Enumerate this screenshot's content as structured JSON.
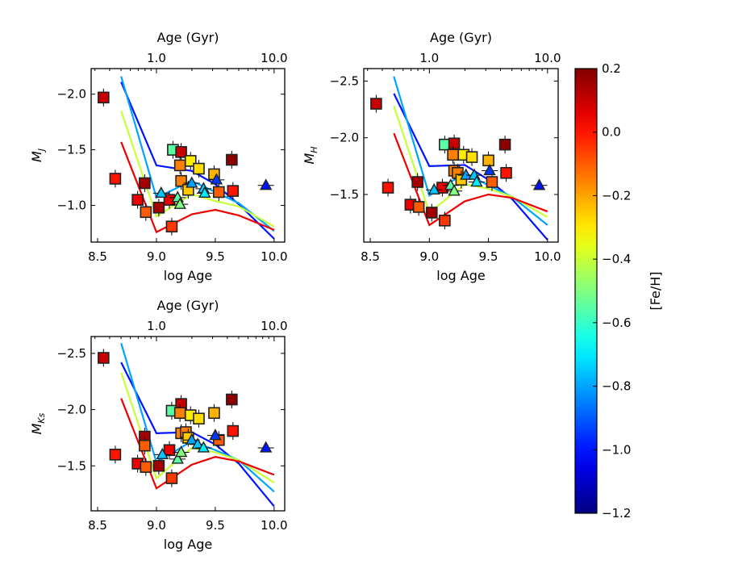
{
  "chart_data": [
    {
      "type": "scatter",
      "id": "MJ",
      "xlabel": "log Age",
      "ylabel_main": "M",
      "ylabel_sub": "J",
      "top_axis_label": "Age (Gyr)",
      "top_ticks": [
        {
          "label": "1.0",
          "logage": 9.0
        },
        {
          "label": "10.0",
          "logage": 10.0
        }
      ],
      "xlim": [
        8.445,
        10.09
      ],
      "ylim": [
        -2.23,
        -0.67
      ],
      "y_inverted": true,
      "xticks": [
        8.5,
        9.0,
        9.5,
        10.0
      ],
      "yticks": [
        -2.0,
        -1.5,
        -1.0
      ],
      "squares": [
        [
          8.55,
          -1.97,
          0.1
        ],
        [
          8.65,
          -1.24,
          0.0
        ],
        [
          8.9,
          -1.2,
          0.15
        ],
        [
          8.84,
          -1.05,
          0.05
        ],
        [
          8.91,
          -0.94,
          -0.1
        ],
        [
          9.02,
          -0.98,
          0.15
        ],
        [
          9.11,
          -1.05,
          0.05
        ],
        [
          9.13,
          -0.81,
          -0.05
        ],
        [
          9.14,
          -1.5,
          -0.55
        ],
        [
          9.21,
          -1.48,
          0.1
        ],
        [
          9.2,
          -1.36,
          -0.15
        ],
        [
          9.29,
          -1.4,
          -0.3
        ],
        [
          9.36,
          -1.33,
          -0.28
        ],
        [
          9.21,
          -1.22,
          -0.15
        ],
        [
          9.27,
          -1.14,
          -0.25
        ],
        [
          9.49,
          -1.28,
          -0.22
        ],
        [
          9.53,
          -1.12,
          -0.1
        ],
        [
          9.65,
          -1.13,
          0.0
        ],
        [
          9.64,
          -1.41,
          0.18
        ]
      ],
      "triangles": [
        [
          9.04,
          -1.11,
          -0.75
        ],
        [
          9.18,
          -1.07,
          -0.55
        ],
        [
          9.2,
          -1.01,
          -0.5
        ],
        [
          9.3,
          -1.2,
          -0.8
        ],
        [
          9.4,
          -1.15,
          -0.75
        ],
        [
          9.41,
          -1.11,
          -0.7
        ],
        [
          9.51,
          -1.23,
          -0.95
        ],
        [
          9.93,
          -1.18,
          -1.0
        ]
      ],
      "lines": [
        {
          "feh": -1.0,
          "x": [
            8.7,
            9.0,
            9.3,
            9.5,
            9.7,
            10.0
          ],
          "y": [
            -2.11,
            -1.36,
            -1.31,
            -1.19,
            -1.01,
            -0.7
          ]
        },
        {
          "feh": -0.8,
          "x": [
            8.7,
            9.0,
            9.3,
            9.5,
            9.7,
            10.0
          ],
          "y": [
            -2.16,
            -1.07,
            -1.22,
            -1.12,
            -1.02,
            -0.77
          ]
        },
        {
          "feh": -0.4,
          "x": [
            8.7,
            9.0,
            9.3,
            9.5,
            9.7,
            10.0
          ],
          "y": [
            -1.85,
            -0.9,
            -1.1,
            -1.04,
            -0.99,
            -0.81
          ]
        },
        {
          "feh": 0.05,
          "x": [
            8.7,
            9.0,
            9.3,
            9.5,
            9.7,
            10.0
          ],
          "y": [
            -1.57,
            -0.76,
            -0.92,
            -0.96,
            -0.91,
            -0.78
          ]
        }
      ]
    },
    {
      "type": "scatter",
      "id": "MH",
      "xlabel": "log Age",
      "ylabel_main": "M",
      "ylabel_sub": "H",
      "top_axis_label": "Age (Gyr)",
      "top_ticks": [
        {
          "label": "1.0",
          "logage": 9.0
        },
        {
          "label": "10.0",
          "logage": 10.0
        }
      ],
      "xlim": [
        8.445,
        10.09
      ],
      "ylim": [
        -2.61,
        -1.08
      ],
      "y_inverted": true,
      "xticks": [
        8.5,
        9.0,
        9.5,
        10.0
      ],
      "yticks": [
        -2.5,
        -2.0,
        -1.5
      ],
      "squares": [
        [
          8.55,
          -2.3,
          0.1
        ],
        [
          8.65,
          -1.56,
          0.0
        ],
        [
          8.9,
          -1.61,
          0.15
        ],
        [
          8.84,
          -1.41,
          0.05
        ],
        [
          8.91,
          -1.39,
          -0.1
        ],
        [
          9.02,
          -1.34,
          0.15
        ],
        [
          9.11,
          -1.56,
          0.05
        ],
        [
          9.13,
          -1.27,
          -0.05
        ],
        [
          9.13,
          -1.94,
          -0.55
        ],
        [
          9.21,
          -1.95,
          0.1
        ],
        [
          9.2,
          -1.85,
          -0.15
        ],
        [
          9.29,
          -1.85,
          -0.3
        ],
        [
          9.36,
          -1.83,
          -0.28
        ],
        [
          9.21,
          -1.71,
          -0.15
        ],
        [
          9.24,
          -1.69,
          -0.15
        ],
        [
          9.27,
          -1.63,
          -0.25
        ],
        [
          9.5,
          -1.8,
          -0.22
        ],
        [
          9.53,
          -1.61,
          -0.1
        ],
        [
          9.65,
          -1.69,
          0.0
        ],
        [
          9.64,
          -1.94,
          0.18
        ]
      ],
      "triangles": [
        [
          9.04,
          -1.54,
          -0.75
        ],
        [
          9.18,
          -1.58,
          -0.55
        ],
        [
          9.21,
          -1.53,
          -0.5
        ],
        [
          9.31,
          -1.67,
          -0.8
        ],
        [
          9.38,
          -1.67,
          -0.75
        ],
        [
          9.4,
          -1.61,
          -0.7
        ],
        [
          9.51,
          -1.71,
          -0.95
        ],
        [
          9.93,
          -1.58,
          -1.0
        ]
      ],
      "lines": [
        {
          "feh": -1.0,
          "x": [
            8.7,
            9.0,
            9.3,
            9.5,
            9.7,
            10.0
          ],
          "y": [
            -2.39,
            -1.75,
            -1.76,
            -1.63,
            -1.46,
            -1.1
          ]
        },
        {
          "feh": -0.8,
          "x": [
            8.7,
            9.0,
            9.3,
            9.5,
            9.7,
            10.0
          ],
          "y": [
            -2.54,
            -1.49,
            -1.69,
            -1.58,
            -1.48,
            -1.23
          ]
        },
        {
          "feh": -0.4,
          "x": [
            8.7,
            9.0,
            9.3,
            9.5,
            9.7,
            10.0
          ],
          "y": [
            -2.28,
            -1.34,
            -1.59,
            -1.55,
            -1.48,
            -1.3
          ]
        },
        {
          "feh": 0.05,
          "x": [
            8.7,
            9.0,
            9.3,
            9.5,
            9.7,
            10.0
          ],
          "y": [
            -2.04,
            -1.23,
            -1.44,
            -1.5,
            -1.47,
            -1.35
          ]
        }
      ]
    },
    {
      "type": "scatter",
      "id": "MKs",
      "xlabel": "log Age",
      "ylabel_main": "M",
      "ylabel_sub": "Ks",
      "top_axis_label": "Age (Gyr)",
      "top_ticks": [
        {
          "label": "1.0",
          "logage": 9.0
        },
        {
          "label": "10.0",
          "logage": 10.0
        }
      ],
      "xlim": [
        8.445,
        10.09
      ],
      "ylim": [
        -2.65,
        -1.1
      ],
      "y_inverted": true,
      "xticks": [
        8.5,
        9.0,
        9.5,
        10.0
      ],
      "yticks": [
        -2.5,
        -2.0,
        -1.5
      ],
      "squares": [
        [
          8.55,
          -2.46,
          0.1
        ],
        [
          8.65,
          -1.6,
          0.0
        ],
        [
          8.9,
          -1.76,
          0.15
        ],
        [
          8.9,
          -1.68,
          -0.1
        ],
        [
          8.84,
          -1.52,
          0.05
        ],
        [
          8.91,
          -1.49,
          -0.1
        ],
        [
          9.02,
          -1.5,
          0.15
        ],
        [
          9.11,
          -1.64,
          0.05
        ],
        [
          9.13,
          -1.39,
          -0.05
        ],
        [
          9.13,
          -1.99,
          -0.55
        ],
        [
          9.21,
          -2.05,
          0.1
        ],
        [
          9.2,
          -1.97,
          -0.15
        ],
        [
          9.29,
          -1.95,
          -0.3
        ],
        [
          9.36,
          -1.92,
          -0.28
        ],
        [
          9.21,
          -1.79,
          -0.15
        ],
        [
          9.25,
          -1.8,
          -0.15
        ],
        [
          9.27,
          -1.75,
          -0.25
        ],
        [
          9.49,
          -1.97,
          -0.22
        ],
        [
          9.53,
          -1.73,
          -0.1
        ],
        [
          9.65,
          -1.81,
          0.0
        ],
        [
          9.64,
          -2.09,
          0.18
        ]
      ],
      "triangles": [
        [
          9.05,
          -1.6,
          -0.75
        ],
        [
          9.18,
          -1.56,
          -0.55
        ],
        [
          9.21,
          -1.62,
          -0.5
        ],
        [
          9.3,
          -1.73,
          -0.8
        ],
        [
          9.35,
          -1.69,
          -0.75
        ],
        [
          9.4,
          -1.66,
          -0.7
        ],
        [
          9.5,
          -1.77,
          -0.95
        ],
        [
          9.93,
          -1.66,
          -1.0
        ]
      ],
      "lines": [
        {
          "feh": -1.0,
          "x": [
            8.7,
            9.0,
            9.3,
            9.5,
            9.7,
            10.0
          ],
          "y": [
            -2.42,
            -1.79,
            -1.8,
            -1.69,
            -1.52,
            -1.14
          ]
        },
        {
          "feh": -0.8,
          "x": [
            8.7,
            9.0,
            9.3,
            9.5,
            9.7,
            10.0
          ],
          "y": [
            -2.59,
            -1.53,
            -1.72,
            -1.64,
            -1.55,
            -1.27
          ]
        },
        {
          "feh": -0.4,
          "x": [
            8.7,
            9.0,
            9.3,
            9.5,
            9.7,
            10.0
          ],
          "y": [
            -2.33,
            -1.39,
            -1.66,
            -1.62,
            -1.55,
            -1.35
          ]
        },
        {
          "feh": 0.05,
          "x": [
            8.7,
            9.0,
            9.3,
            9.5,
            9.7,
            10.0
          ],
          "y": [
            -2.1,
            -1.3,
            -1.51,
            -1.58,
            -1.54,
            -1.42
          ]
        }
      ]
    }
  ],
  "colorbar": {
    "label": "[Fe/H]",
    "colormap": "jet",
    "range": [
      -1.2,
      0.2
    ],
    "ticks": [
      "0.2",
      "0.0",
      "−0.2",
      "−0.4",
      "−0.6",
      "−0.8",
      "−1.0",
      "−1.2"
    ],
    "tick_values": [
      0.2,
      0.0,
      -0.2,
      -0.4,
      -0.6,
      -0.8,
      -1.0,
      -1.2
    ]
  }
}
